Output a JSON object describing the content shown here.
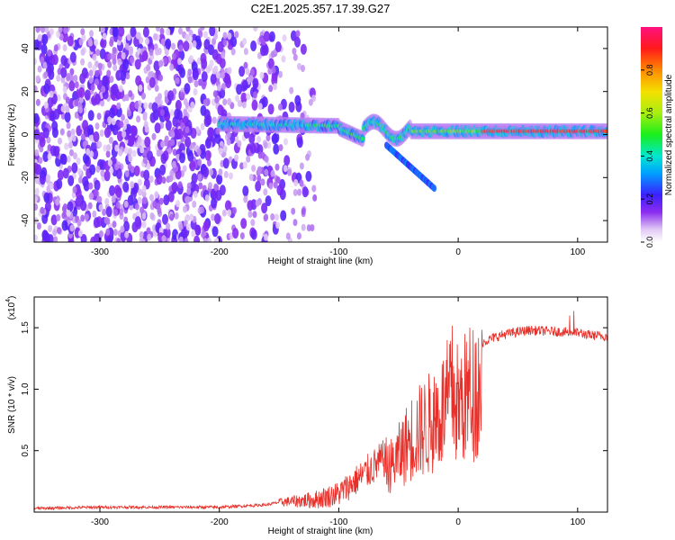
{
  "title": "C2E1.2025.357.17.39.G27",
  "chart_data": [
    {
      "type": "heatmap",
      "name": "spectrogram",
      "xlabel": "Height of straight line (km)",
      "ylabel": "Frequency (Hz)",
      "xlim": [
        -355,
        125
      ],
      "ylim": [
        -50,
        50
      ],
      "xticks": [
        -300,
        -200,
        -100,
        0,
        100
      ],
      "yticks": [
        -40,
        -20,
        0,
        20,
        40
      ],
      "colorbar": {
        "label": "Normalized spectral amplitude",
        "range": [
          0,
          1
        ],
        "ticks": [
          "0.0",
          "0.2",
          "0.4",
          "0.6",
          "0.8"
        ]
      },
      "features": [
        {
          "name": "noise band",
          "x_range": [
            -355,
            -120
          ],
          "freq_range": [
            -50,
            50
          ],
          "amplitude": 0.12
        },
        {
          "name": "carrier ridge",
          "x_range": [
            -200,
            125
          ],
          "freq_center": [
            5,
            4,
            3,
            1,
            1
          ],
          "amplitude_range": [
            0.3,
            0.95
          ]
        },
        {
          "name": "descending branch",
          "x_range": [
            -60,
            -20
          ],
          "freq_range": [
            -25,
            -5
          ],
          "amplitude": 0.25
        }
      ]
    },
    {
      "type": "line",
      "name": "snr",
      "xlabel": "Height of straight line (km)",
      "ylabel": "SNR (10 * v/v)",
      "scale_label": "(x10",
      "scale_exp": "4",
      "scale_close": ")",
      "xlim": [
        -355,
        125
      ],
      "ylim": [
        0,
        1.75
      ],
      "xticks": [
        -300,
        -200,
        -100,
        0,
        100
      ],
      "yticks": [
        "0.5",
        "1.0",
        "1.5"
      ],
      "series": [
        {
          "name": "SNR",
          "color": "#e8302a",
          "x": [
            -355,
            -300,
            -250,
            -200,
            -160,
            -150,
            -120,
            -100,
            -80,
            -60,
            -50,
            -40,
            -30,
            -20,
            -10,
            -5,
            0,
            10,
            20,
            30,
            40,
            60,
            80,
            100,
            110,
            125
          ],
          "y": [
            0.03,
            0.04,
            0.04,
            0.04,
            0.06,
            0.08,
            0.1,
            0.15,
            0.3,
            0.45,
            0.6,
            0.8,
            0.9,
            1.0,
            1.15,
            1.3,
            1.15,
            1.3,
            1.38,
            1.42,
            1.45,
            1.48,
            1.47,
            1.46,
            1.44,
            1.43
          ]
        }
      ]
    }
  ]
}
